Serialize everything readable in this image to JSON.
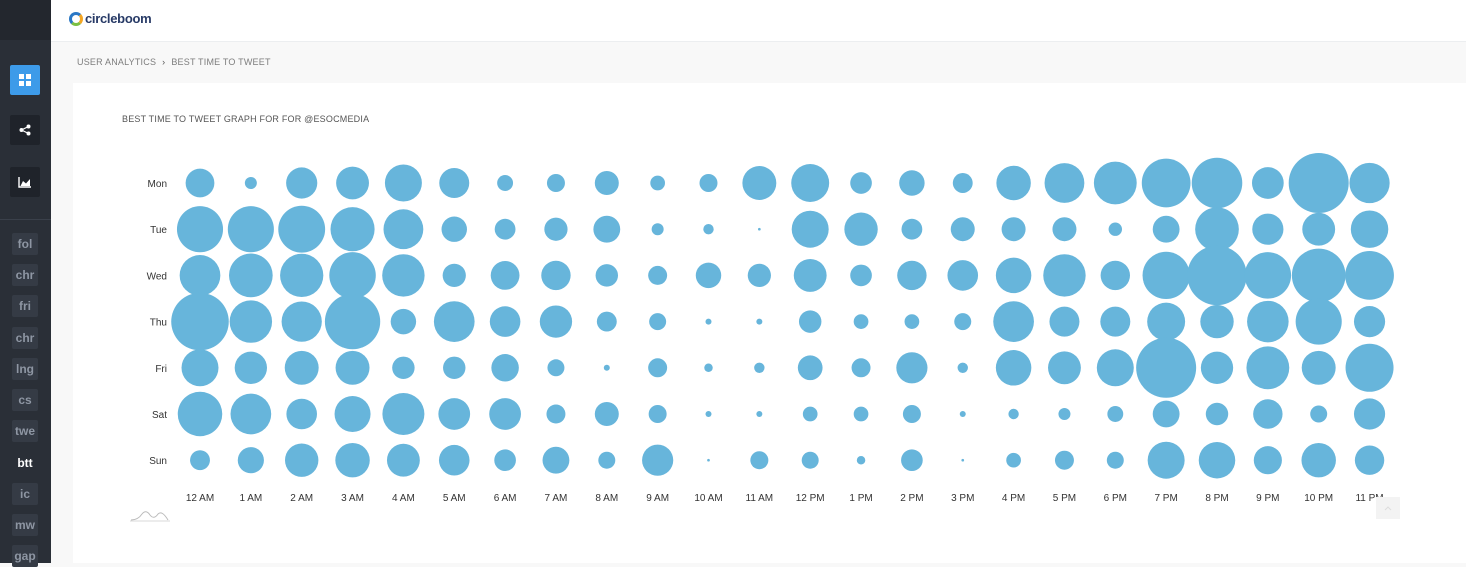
{
  "app": {
    "logo_text": "circleboom"
  },
  "sidebar": {
    "icon_buttons": [
      {
        "icon": "dashboard-grid-icon",
        "active": true
      },
      {
        "icon": "share-icon",
        "active": false
      },
      {
        "icon": "area-chart-icon",
        "active": false
      }
    ],
    "tags": [
      "fol",
      "chr",
      "fri",
      "chr",
      "lng",
      "cs",
      "twe",
      "btt",
      "ic",
      "mw",
      "gap"
    ],
    "current_tag": "btt"
  },
  "breadcrumb": {
    "parent": "USER ANALYTICS",
    "separator": "›",
    "current": "BEST TIME TO TWEET"
  },
  "chart_card": {
    "title": "BEST TIME TO TWEET GRAPH FOR FOR @ESOCMEDIA"
  },
  "colors": {
    "bubble": "#67b5db",
    "accent": "#3d9be9",
    "sidebar": "#2a2f37"
  },
  "chart_data": {
    "type": "bubble-matrix",
    "title": "BEST TIME TO TWEET GRAPH FOR FOR @ESOCMEDIA",
    "rows": [
      "Mon",
      "Tue",
      "Wed",
      "Thu",
      "Fri",
      "Sat",
      "Sun"
    ],
    "columns": [
      "12 AM",
      "1 AM",
      "2 AM",
      "3 AM",
      "4 AM",
      "5 AM",
      "6 AM",
      "7 AM",
      "8 AM",
      "9 AM",
      "10 AM",
      "11 AM",
      "12 PM",
      "1 PM",
      "2 PM",
      "3 PM",
      "4 PM",
      "5 PM",
      "6 PM",
      "7 PM",
      "8 PM",
      "9 PM",
      "10 PM",
      "11 PM"
    ],
    "value_scale": "relative bubble area (0-1, estimated)",
    "values": [
      [
        0.23,
        0.04,
        0.27,
        0.3,
        0.38,
        0.25,
        0.07,
        0.09,
        0.16,
        0.06,
        0.09,
        0.32,
        0.4,
        0.13,
        0.18,
        0.11,
        0.33,
        0.44,
        0.51,
        0.66,
        0.71,
        0.28,
        1.0,
        0.45
      ],
      [
        0.59,
        0.59,
        0.61,
        0.54,
        0.44,
        0.18,
        0.12,
        0.15,
        0.2,
        0.04,
        0.03,
        0.002,
        0.38,
        0.31,
        0.12,
        0.16,
        0.16,
        0.16,
        0.05,
        0.2,
        0.53,
        0.27,
        0.3,
        0.39
      ],
      [
        0.46,
        0.53,
        0.52,
        0.6,
        0.5,
        0.15,
        0.23,
        0.24,
        0.14,
        0.1,
        0.18,
        0.15,
        0.3,
        0.13,
        0.24,
        0.26,
        0.35,
        0.5,
        0.24,
        0.62,
        0.98,
        0.6,
        0.8,
        0.66
      ],
      [
        0.92,
        0.5,
        0.45,
        0.85,
        0.18,
        0.46,
        0.26,
        0.29,
        0.11,
        0.08,
        0.01,
        0.01,
        0.14,
        0.06,
        0.06,
        0.08,
        0.46,
        0.25,
        0.25,
        0.4,
        0.31,
        0.48,
        0.59,
        0.27
      ],
      [
        0.38,
        0.29,
        0.32,
        0.32,
        0.14,
        0.14,
        0.21,
        0.08,
        0.01,
        0.1,
        0.02,
        0.03,
        0.17,
        0.1,
        0.27,
        0.03,
        0.35,
        0.3,
        0.38,
        1.0,
        0.29,
        0.51,
        0.32,
        0.64
      ],
      [
        0.55,
        0.46,
        0.26,
        0.36,
        0.49,
        0.28,
        0.28,
        0.1,
        0.16,
        0.09,
        0.01,
        0.01,
        0.06,
        0.06,
        0.09,
        0.01,
        0.03,
        0.04,
        0.07,
        0.2,
        0.14,
        0.24,
        0.08,
        0.27
      ],
      [
        0.11,
        0.19,
        0.31,
        0.33,
        0.3,
        0.26,
        0.13,
        0.2,
        0.08,
        0.27,
        0.002,
        0.09,
        0.08,
        0.02,
        0.13,
        0.002,
        0.06,
        0.1,
        0.08,
        0.38,
        0.37,
        0.22,
        0.33,
        0.24
      ]
    ]
  }
}
